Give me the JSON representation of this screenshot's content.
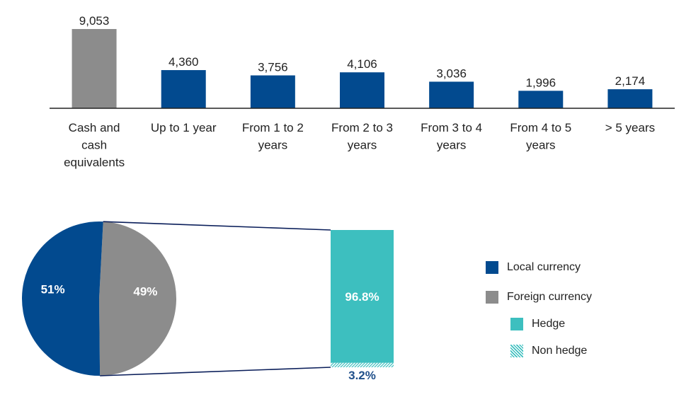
{
  "chart_data": [
    {
      "type": "bar",
      "categories": [
        "Cash and cash equivalents",
        "Up to 1 year",
        "From 1 to 2 years",
        "From 2 to 3 years",
        "From 3 to 4 years",
        "From 4 to 5 years",
        "> 5 years"
      ],
      "category_lines": [
        [
          "Cash and",
          "cash",
          "equivalents"
        ],
        [
          "Up to 1 year"
        ],
        [
          "From 1 to 2",
          "years"
        ],
        [
          "From 2 to 3",
          "years"
        ],
        [
          "From 3 to 4",
          "years"
        ],
        [
          "From 4 to 5",
          "years"
        ],
        [
          "> 5 years"
        ]
      ],
      "values": [
        9053,
        4360,
        3756,
        4106,
        3036,
        1996,
        2174
      ],
      "value_labels": [
        "9,053",
        "4,360",
        "3,756",
        "4,106",
        "3,036",
        "1,996",
        "2,174"
      ],
      "bar_colors": [
        "#8c8c8c",
        "#024a8f",
        "#024a8f",
        "#024a8f",
        "#024a8f",
        "#024a8f",
        "#024a8f"
      ],
      "ylim": [
        0,
        9053
      ],
      "grid": false
    },
    {
      "type": "pie",
      "labels": [
        "Local currency",
        "Foreign currency"
      ],
      "values": [
        51,
        49
      ],
      "value_labels": [
        "51%",
        "49%"
      ],
      "colors": [
        "#024a8f",
        "#8c8c8c"
      ]
    },
    {
      "type": "bar",
      "stacked": true,
      "labels": [
        "Hedge",
        "Non hedge"
      ],
      "values": [
        96.8,
        3.2
      ],
      "value_labels": [
        "96.8%",
        "3.2%"
      ],
      "colors": [
        "#3dbfbf",
        "#3dbfbf"
      ],
      "patterns": [
        "solid",
        "hatched"
      ]
    }
  ],
  "legend": {
    "items": [
      {
        "label": "Local currency",
        "color": "#024a8f",
        "style": "solid"
      },
      {
        "label": "Foreign currency",
        "color": "#8c8c8c",
        "style": "solid"
      },
      {
        "label": "Hedge",
        "color": "#3dbfbf",
        "style": "solid"
      },
      {
        "label": "Non hedge",
        "color": "#3dbfbf",
        "style": "hatched"
      }
    ]
  }
}
